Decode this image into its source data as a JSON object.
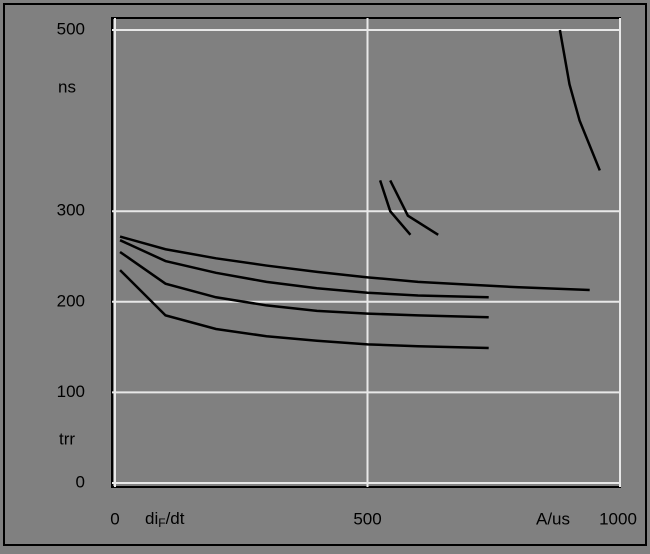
{
  "chart_data": {
    "type": "line",
    "ylabel_unit": "ns",
    "ylabel": "trr",
    "xlabel": {
      "main": "di",
      "sub": "F",
      "rest": "/dt"
    },
    "xlabel_unit": "A/us",
    "xlim": [
      0,
      1000
    ],
    "xticks": [
      0,
      500,
      1000
    ],
    "ylim": [
      0,
      500
    ],
    "yticks": [
      0,
      100,
      200,
      300,
      500
    ],
    "grid": true,
    "series": [
      {
        "color": "#000000",
        "x": [
          10,
          100,
          200,
          300,
          400,
          500,
          600,
          700,
          800,
          940
        ],
        "values": [
          272,
          258,
          248,
          240,
          233,
          227,
          222,
          219,
          216,
          213
        ]
      },
      {
        "color": "#000000",
        "x": [
          10,
          100,
          200,
          300,
          400,
          500,
          600,
          740
        ],
        "values": [
          268,
          245,
          232,
          222,
          215,
          210,
          207,
          205
        ]
      },
      {
        "color": "#000000",
        "x": [
          10,
          100,
          200,
          300,
          400,
          500,
          600,
          740
        ],
        "values": [
          255,
          220,
          205,
          196,
          190,
          187,
          185,
          183
        ]
      },
      {
        "color": "#000000",
        "x": [
          10,
          100,
          200,
          300,
          400,
          500,
          600,
          740
        ],
        "values": [
          235,
          185,
          170,
          162,
          157,
          153,
          151,
          149
        ]
      },
      {
        "color": "#000000",
        "x": [
          881,
          900,
          920,
          960
        ],
        "values": [
          500,
          440,
          400,
          345
        ]
      },
      {
        "color": "#000000",
        "x": [
          525,
          545,
          585
        ],
        "values": [
          334,
          300,
          274
        ]
      },
      {
        "color": "#000000",
        "x": [
          545,
          580,
          640
        ],
        "values": [
          334,
          295,
          274
        ]
      }
    ]
  }
}
